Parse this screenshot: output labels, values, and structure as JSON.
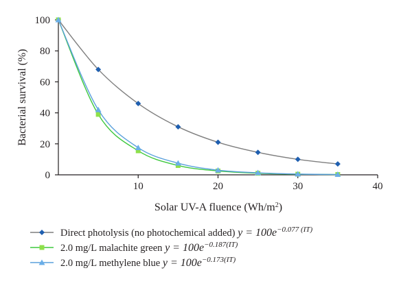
{
  "chart_data": {
    "type": "line",
    "xlabel": "Solar UV-A fluence (Wh/m",
    "xlabel_sup": "2",
    "xlabel_end": ")",
    "ylabel": "Bacterial survival (%)",
    "xlim": [
      0,
      40
    ],
    "ylim": [
      0,
      100
    ],
    "x_ticks": [
      10,
      20,
      30,
      40
    ],
    "y_ticks": [
      0,
      20,
      40,
      60,
      80,
      100
    ],
    "grid": false,
    "legend_position": "bottom",
    "series": [
      {
        "name": "Direct photolysis (no photochemical added)",
        "equation_prefix": "y = 100e",
        "equation_exponent": "−0.077 (IT)",
        "color": "#7f7f7f",
        "marker_color": "#1f5fb0",
        "marker": "diamond",
        "x": [
          0,
          5,
          10,
          15,
          20,
          25,
          30,
          35
        ],
        "y": [
          100,
          68,
          46,
          31,
          21,
          14.5,
          10,
          7
        ]
      },
      {
        "name": "2.0 mg/L malachite green",
        "equation_prefix": "y = 100e",
        "equation_exponent": "−0.187(IT)",
        "color": "#3ec83e",
        "marker_color": "#8ee04a",
        "marker": "square",
        "x": [
          0,
          5,
          10,
          15,
          20,
          25,
          30,
          35
        ],
        "y": [
          100,
          39,
          15.5,
          6,
          2.5,
          1,
          0.4,
          0.2
        ]
      },
      {
        "name": "2.0 mg/L methylene blue",
        "equation_prefix": "y = 100e",
        "equation_exponent": "−0.173(IT)",
        "color": "#5aa0dc",
        "marker_color": "#6aaee8",
        "marker": "triangle",
        "x": [
          0,
          5,
          10,
          15,
          20,
          25,
          30,
          35
        ],
        "y": [
          100,
          42,
          17.5,
          7.5,
          3,
          1.3,
          0.5,
          0.2
        ]
      }
    ]
  }
}
